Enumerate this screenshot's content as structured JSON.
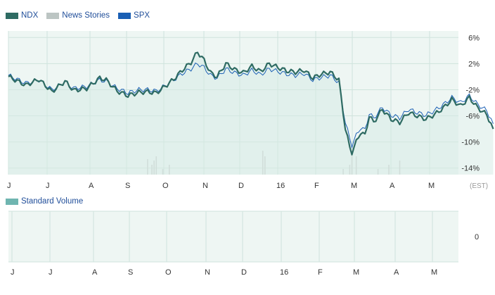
{
  "legend": [
    {
      "label": "NDX",
      "color": "#2e6b63"
    },
    {
      "label": "News Stories",
      "color": "#bcc5c3"
    },
    {
      "label": "SPX",
      "color": "#1a5fb4"
    }
  ],
  "volume_legend": {
    "label": "Standard Volume",
    "color": "#6fb5b0"
  },
  "timezone_label": "(EST)",
  "colors": {
    "plot_bg": "#eef6f3",
    "grid": "#cfe3dc",
    "ndx": "#2e6b63",
    "spx": "#1a5fb4",
    "ndx_fill": "#d7ebe5",
    "news": "#c9cfcd"
  },
  "chart_data": [
    {
      "type": "line",
      "title": "",
      "y_unit": "%",
      "ylim": [
        -15,
        7
      ],
      "y_ticks": [
        6,
        2,
        -2,
        -6,
        -10,
        -14
      ],
      "y_tick_labels": [
        "6%",
        "2%",
        "-2%",
        "-6%",
        "-10%",
        "-14%"
      ],
      "x_tick_labels": [
        "J",
        "J",
        "A",
        "S",
        "O",
        "N",
        "D",
        "16",
        "F",
        "M",
        "A",
        "M"
      ],
      "grid": true,
      "legend_position": "top-left",
      "x_count": 208,
      "series": [
        {
          "name": "NDX",
          "keyframes": [
            [
              0,
              0
            ],
            [
              8,
              -1.3
            ],
            [
              14,
              -0.4
            ],
            [
              20,
              -2.3
            ],
            [
              26,
              -0.7
            ],
            [
              30,
              -2.1
            ],
            [
              36,
              -1.8
            ],
            [
              42,
              -0.2
            ],
            [
              45,
              -0.5
            ],
            [
              50,
              -2.2
            ],
            [
              55,
              -2.9
            ],
            [
              60,
              -2.4
            ],
            [
              64,
              -2.3
            ],
            [
              68,
              -2.5
            ],
            [
              72,
              -1.5
            ],
            [
              76,
              -0.4
            ],
            [
              80,
              1.0
            ],
            [
              84,
              2.2
            ],
            [
              87,
              3.8
            ],
            [
              90,
              2.5
            ],
            [
              93,
              0.6
            ],
            [
              96,
              0.0
            ],
            [
              100,
              2.0
            ],
            [
              104,
              1.1
            ],
            [
              108,
              0.6
            ],
            [
              112,
              1.6
            ],
            [
              116,
              0.8
            ],
            [
              120,
              2.0
            ],
            [
              124,
              1.4
            ],
            [
              128,
              0.9
            ],
            [
              132,
              0.7
            ],
            [
              136,
              1.0
            ],
            [
              140,
              -0.2
            ],
            [
              144,
              0.4
            ],
            [
              148,
              0.7
            ],
            [
              152,
              -0.5
            ],
            [
              155,
              -8.0
            ],
            [
              157,
              -10.8
            ],
            [
              158,
              -11.6
            ],
            [
              160,
              -10.0
            ],
            [
              162,
              -8.5
            ],
            [
              164,
              -9.0
            ],
            [
              166,
              -6.0
            ],
            [
              168,
              -7.0
            ],
            [
              172,
              -5.0
            ],
            [
              176,
              -6.5
            ],
            [
              180,
              -7.0
            ],
            [
              184,
              -5.5
            ],
            [
              188,
              -6.0
            ],
            [
              192,
              -6.5
            ],
            [
              196,
              -5.8
            ],
            [
              200,
              -4.8
            ],
            [
              204,
              -3.5
            ],
            [
              208,
              -4.5
            ],
            [
              212,
              -3.2
            ],
            [
              216,
              -4.8
            ],
            [
              220,
              -5.8
            ],
            [
              223,
              -8.0
            ]
          ]
        },
        {
          "name": "SPX",
          "keyframes": [
            [
              0,
              0.2
            ],
            [
              8,
              -1.0
            ],
            [
              14,
              -0.5
            ],
            [
              20,
              -2.0
            ],
            [
              26,
              -0.8
            ],
            [
              30,
              -1.8
            ],
            [
              36,
              -1.5
            ],
            [
              42,
              -0.5
            ],
            [
              45,
              -0.7
            ],
            [
              50,
              -1.8
            ],
            [
              55,
              -2.5
            ],
            [
              60,
              -2.0
            ],
            [
              64,
              -2.0
            ],
            [
              68,
              -2.2
            ],
            [
              72,
              -1.4
            ],
            [
              76,
              -0.5
            ],
            [
              80,
              0.5
            ],
            [
              84,
              1.2
            ],
            [
              87,
              2.0
            ],
            [
              90,
              1.4
            ],
            [
              93,
              0.2
            ],
            [
              96,
              -0.2
            ],
            [
              100,
              1.2
            ],
            [
              104,
              0.6
            ],
            [
              108,
              0.2
            ],
            [
              112,
              1.0
            ],
            [
              116,
              0.3
            ],
            [
              120,
              1.2
            ],
            [
              124,
              0.8
            ],
            [
              128,
              0.4
            ],
            [
              132,
              0.2
            ],
            [
              136,
              0.5
            ],
            [
              140,
              -0.5
            ],
            [
              144,
              -0.1
            ],
            [
              148,
              0.2
            ],
            [
              152,
              -0.9
            ],
            [
              155,
              -7.0
            ],
            [
              157,
              -9.5
            ],
            [
              158,
              -10.5
            ],
            [
              160,
              -9.0
            ],
            [
              162,
              -7.8
            ],
            [
              164,
              -8.2
            ],
            [
              166,
              -5.6
            ],
            [
              168,
              -6.4
            ],
            [
              172,
              -4.7
            ],
            [
              176,
              -5.9
            ],
            [
              180,
              -6.3
            ],
            [
              184,
              -5.0
            ],
            [
              188,
              -5.5
            ],
            [
              192,
              -5.9
            ],
            [
              196,
              -5.2
            ],
            [
              200,
              -4.3
            ],
            [
              204,
              -3.2
            ],
            [
              208,
              -4.0
            ],
            [
              212,
              -2.9
            ],
            [
              216,
              -4.3
            ],
            [
              220,
              -5.2
            ],
            [
              223,
              -7.2
            ]
          ]
        }
      ],
      "news_bars": [
        {
          "x": 64
        },
        {
          "x": 66
        },
        {
          "x": 67
        },
        {
          "x": 68
        },
        {
          "x": 71
        },
        {
          "x": 74
        },
        {
          "x": 117
        },
        {
          "x": 118
        },
        {
          "x": 154
        },
        {
          "x": 157
        },
        {
          "x": 158
        },
        {
          "x": 160
        },
        {
          "x": 170
        },
        {
          "x": 175
        },
        {
          "x": 180
        }
      ]
    },
    {
      "type": "bar",
      "title": "",
      "y_ticks": [
        0
      ],
      "y_tick_labels": [
        "0"
      ],
      "x_tick_labels": [
        "J",
        "J",
        "A",
        "S",
        "O",
        "N",
        "D",
        "16",
        "F",
        "M",
        "A",
        "M"
      ],
      "grid": true,
      "values": []
    }
  ]
}
